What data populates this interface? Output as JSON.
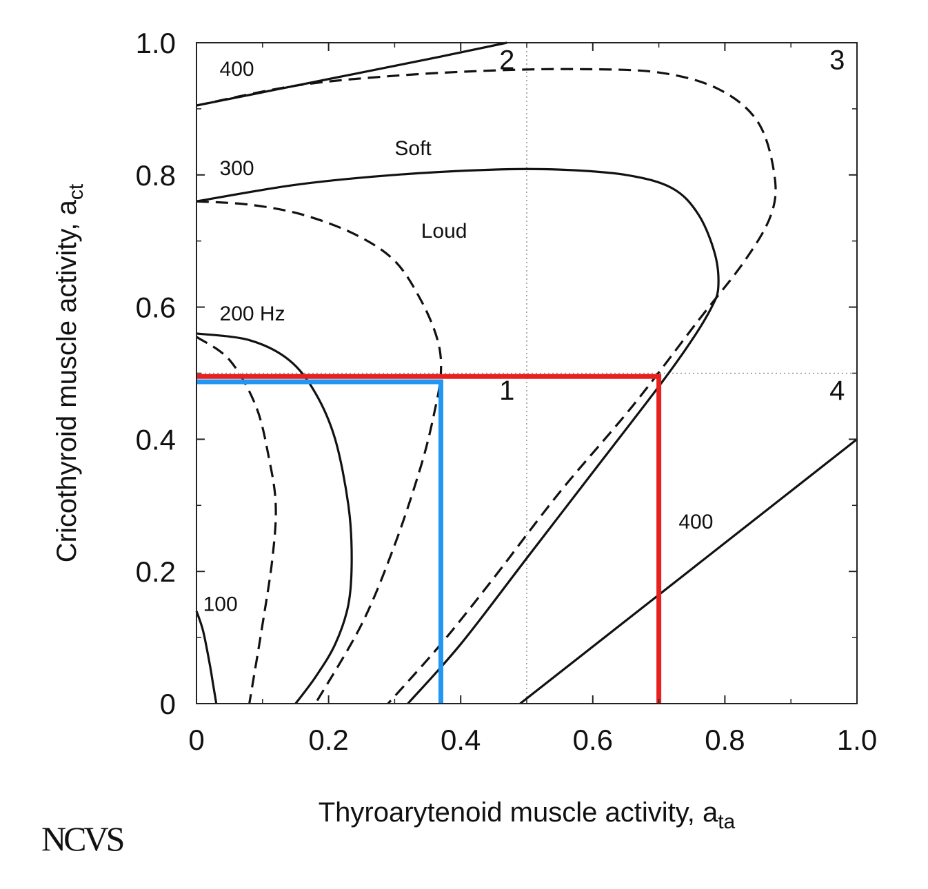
{
  "chart_data": {
    "type": "line",
    "xlabel": "Thyroarytenoid muscle activity, a",
    "xlabel_sub": "ta",
    "ylabel": "Cricothyroid muscle activity, a",
    "ylabel_sub": "ct",
    "xlim": [
      0,
      1.0
    ],
    "ylim": [
      0,
      1.0
    ],
    "x_ticks": [
      0,
      0.2,
      0.4,
      0.6,
      0.8,
      1.0
    ],
    "x_tick_labels": [
      "0",
      "0.2",
      "0.4",
      "0.6",
      "0.8",
      "1.0"
    ],
    "y_ticks": [
      0,
      0.2,
      0.4,
      0.6,
      0.8,
      1.0
    ],
    "y_tick_labels": [
      "0",
      "0.2",
      "0.4",
      "0.6",
      "0.8",
      "1.0"
    ],
    "reference_lines": {
      "x": 0.5,
      "y": 0.5,
      "style": "dotted"
    },
    "quadrant_labels": [
      {
        "text": "1",
        "x": 0.47,
        "y": 0.46
      },
      {
        "text": "2",
        "x": 0.47,
        "y": 0.96
      },
      {
        "text": "3",
        "x": 0.97,
        "y": 0.96
      },
      {
        "text": "4",
        "x": 0.97,
        "y": 0.46
      }
    ],
    "series": [
      {
        "style": "solid",
        "x": [
          0,
          0.01,
          0.02,
          0.025,
          0.03
        ],
        "y": [
          0.14,
          0.11,
          0.06,
          0.03,
          0
        ]
      },
      {
        "style": "solid",
        "x": [
          0,
          0.08,
          0.14,
          0.18,
          0.21,
          0.23,
          0.235,
          0.23,
          0.21,
          0.18,
          0.15
        ],
        "y": [
          0.56,
          0.55,
          0.52,
          0.47,
          0.4,
          0.3,
          0.22,
          0.15,
          0.09,
          0.04,
          0
        ]
      },
      {
        "style": "dashed",
        "x": [
          0,
          0.05,
          0.09,
          0.11,
          0.12,
          0.115,
          0.1,
          0.08
        ],
        "y": [
          0.555,
          0.52,
          0.45,
          0.37,
          0.3,
          0.22,
          0.12,
          0
        ]
      },
      {
        "style": "solid",
        "x": [
          0,
          0.15,
          0.3,
          0.45,
          0.55,
          0.65,
          0.72,
          0.76,
          0.785,
          0.79,
          0.78,
          0.75,
          0.7,
          0.6,
          0.5,
          0.4,
          0.32
        ],
        "y": [
          0.76,
          0.785,
          0.8,
          0.808,
          0.808,
          0.8,
          0.78,
          0.74,
          0.68,
          0.63,
          0.6,
          0.55,
          0.48,
          0.35,
          0.22,
          0.09,
          0
        ]
      },
      {
        "style": "dashed",
        "x": [
          0,
          0.08,
          0.16,
          0.24,
          0.3,
          0.34,
          0.365,
          0.37,
          0.36,
          0.34,
          0.3,
          0.25,
          0.18
        ],
        "y": [
          0.76,
          0.755,
          0.74,
          0.71,
          0.67,
          0.61,
          0.55,
          0.5,
          0.44,
          0.36,
          0.24,
          0.12,
          0
        ]
      },
      {
        "style": "solid",
        "x": [
          0,
          0.2,
          0.35,
          0.47
        ],
        "y": [
          0.905,
          0.945,
          0.975,
          1.0
        ]
      },
      {
        "style": "dashed",
        "x": [
          0,
          0.15,
          0.3,
          0.45,
          0.58,
          0.7,
          0.79,
          0.85,
          0.875,
          0.87,
          0.83,
          0.76,
          0.66,
          0.55,
          0.45,
          0.37,
          0.29
        ],
        "y": [
          0.905,
          0.935,
          0.95,
          0.958,
          0.96,
          0.955,
          0.93,
          0.88,
          0.8,
          0.74,
          0.67,
          0.58,
          0.45,
          0.32,
          0.19,
          0.09,
          0
        ]
      },
      {
        "style": "solid",
        "x": [
          0.49,
          1.0
        ],
        "y": [
          0,
          0.4
        ]
      }
    ],
    "curve_labels": [
      {
        "text": "400",
        "x": 0.035,
        "y": 0.95
      },
      {
        "text": "300",
        "x": 0.035,
        "y": 0.8
      },
      {
        "text": "200 Hz",
        "x": 0.035,
        "y": 0.58
      },
      {
        "text": "100",
        "x": 0.01,
        "y": 0.14
      },
      {
        "text": "Soft",
        "x": 0.3,
        "y": 0.83
      },
      {
        "text": "Loud",
        "x": 0.34,
        "y": 0.705
      },
      {
        "text": "400",
        "x": 0.73,
        "y": 0.265
      }
    ],
    "highlight_lines": [
      {
        "color": "#e8211f",
        "points": [
          [
            0,
            0.495
          ],
          [
            0.7,
            0.495
          ],
          [
            0.7,
            0
          ]
        ]
      },
      {
        "color": "#2196f3",
        "points": [
          [
            0,
            0.487
          ],
          [
            0.37,
            0.487
          ],
          [
            0.37,
            0
          ]
        ]
      }
    ]
  },
  "logo_text": "NCVS"
}
